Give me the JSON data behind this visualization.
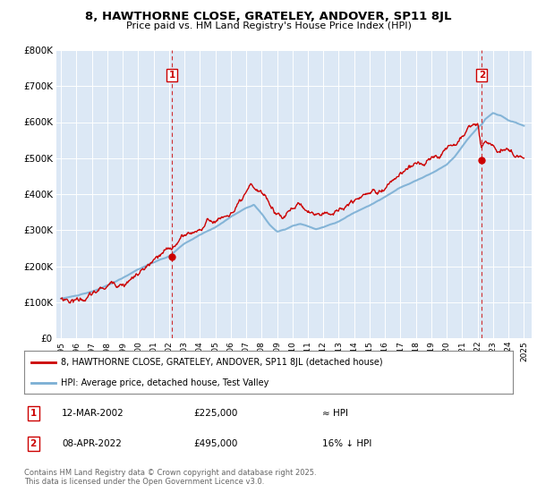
{
  "title": "8, HAWTHORNE CLOSE, GRATELEY, ANDOVER, SP11 8JL",
  "subtitle": "Price paid vs. HM Land Registry's House Price Index (HPI)",
  "legend_line1": "8, HAWTHORNE CLOSE, GRATELEY, ANDOVER, SP11 8JL (detached house)",
  "legend_line2": "HPI: Average price, detached house, Test Valley",
  "footnote": "Contains HM Land Registry data © Crown copyright and database right 2025.\nThis data is licensed under the Open Government Licence v3.0.",
  "sale1_label": "1",
  "sale1_date": "12-MAR-2002",
  "sale1_price": "£225,000",
  "sale1_hpi": "≈ HPI",
  "sale2_label": "2",
  "sale2_date": "08-APR-2022",
  "sale2_price": "£495,000",
  "sale2_hpi": "16% ↓ HPI",
  "sale1_year": 2002.2,
  "sale2_year": 2022.27,
  "sale1_value": 225000,
  "sale2_value": 495000,
  "red_color": "#cc0000",
  "blue_color": "#7bafd4",
  "chart_bg": "#dce8f5",
  "white": "#ffffff",
  "grid_color": "#ffffff",
  "ylim": [
    0,
    800000
  ],
  "xlim_start": 1994.7,
  "xlim_end": 2025.5,
  "yticks": [
    0,
    100000,
    200000,
    300000,
    400000,
    500000,
    600000,
    700000,
    800000
  ],
  "xticks": [
    1995,
    1996,
    1997,
    1998,
    1999,
    2000,
    2001,
    2002,
    2003,
    2004,
    2005,
    2006,
    2007,
    2008,
    2009,
    2010,
    2011,
    2012,
    2013,
    2014,
    2015,
    2016,
    2017,
    2018,
    2019,
    2020,
    2021,
    2022,
    2023,
    2024,
    2025
  ]
}
